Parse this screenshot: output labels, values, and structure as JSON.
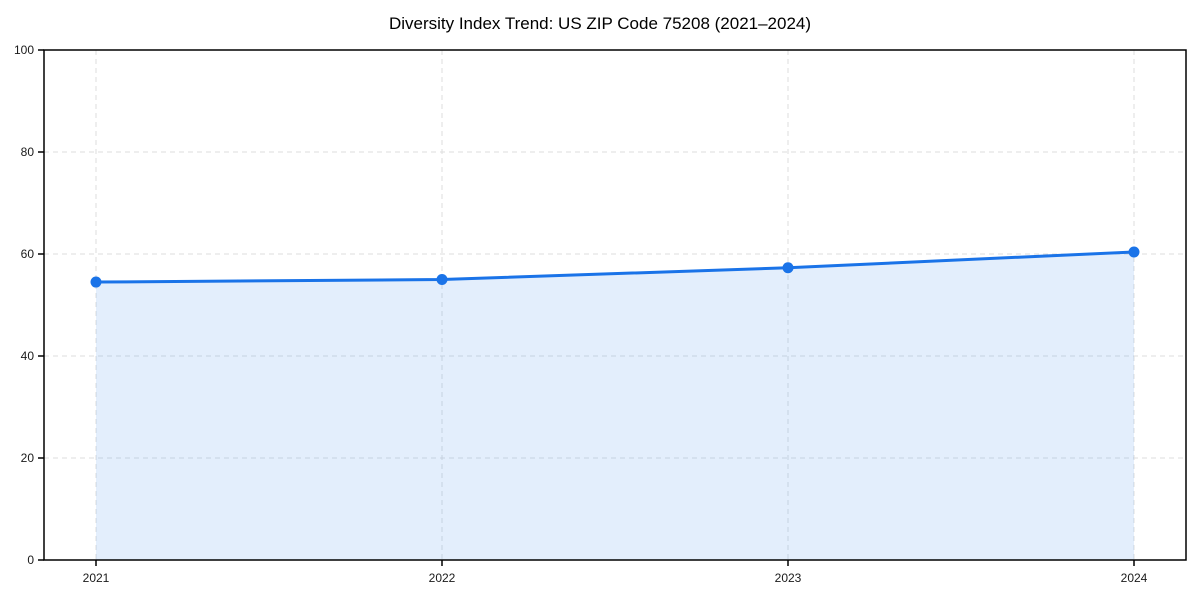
{
  "title": "Diversity Index Trend: US ZIP Code 75208 (2021–2024)",
  "chart_data": {
    "type": "area",
    "title": "Diversity Index Trend: US ZIP Code 75208 (2021–2024)",
    "categories": [
      "2021",
      "2022",
      "2023",
      "2024"
    ],
    "x": [
      2021,
      2022,
      2023,
      2024
    ],
    "series": [
      {
        "name": "Diversity Index",
        "values": [
          54.5,
          55.0,
          57.3,
          60.4
        ]
      }
    ],
    "xlabel": "",
    "ylabel": "",
    "ylim": [
      0,
      100
    ],
    "yticks": [
      0,
      20,
      40,
      60,
      80,
      100
    ],
    "grid": true,
    "legend_position": "none",
    "colors": {
      "line": "#1a73e8",
      "marker": "#1a73e8",
      "fill": "#1a73e8",
      "fill_opacity": 0.12,
      "grid": "#dedede",
      "spine": "#000000",
      "tick_text": "#1a1a1a",
      "background": "#ffffff"
    }
  }
}
